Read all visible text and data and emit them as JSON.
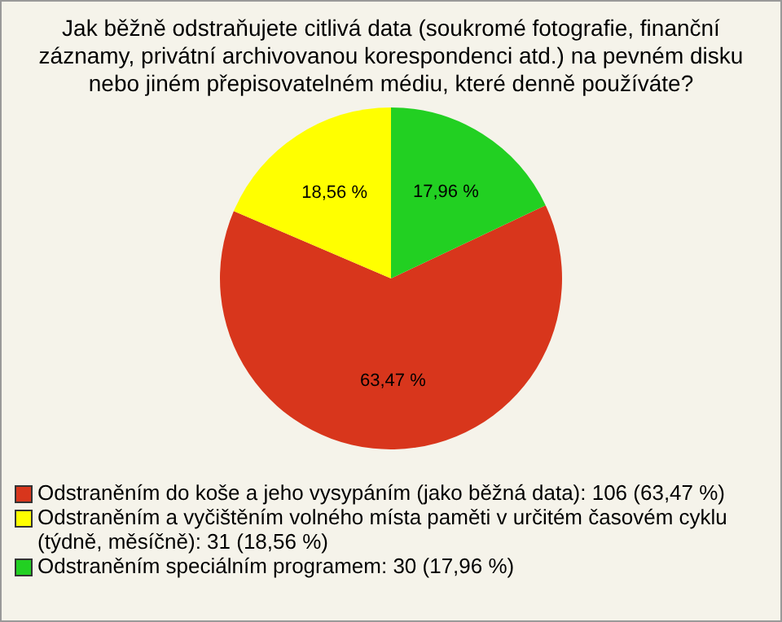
{
  "chart_data": {
    "type": "pie",
    "title": "Jak běžně odstraňujete citlivá data (soukromé fotografie, finanční záznamy, privátní archivovanou korespondenci atd.) na pevném disku nebo jiném přepisovatelném médiu, které denně používáte?",
    "categories": [
      "Odstraněním do koše a jeho vysypáním (jako běžná data): 106 (63,47 %)",
      "Odstraněním a vyčištěním volného místa paměti v určitém časovém cyklu (týdně, měsíčně): 31 (18,56 %)",
      "Odstraněním speciálním programem: 30 (17,96 %)"
    ],
    "values": [
      63.47,
      18.56,
      17.96
    ],
    "colors": [
      "#d8361c",
      "#ffff00",
      "#22d022"
    ],
    "value_labels": [
      "63,47 %",
      "18,56 %",
      "17,96 %"
    ],
    "legend": "bottom"
  }
}
